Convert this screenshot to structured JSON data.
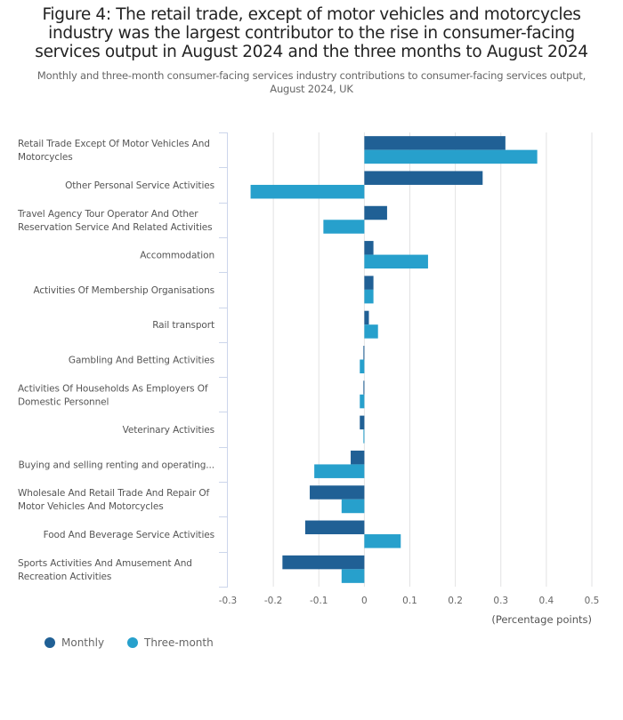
{
  "header": {
    "title": "Figure 4: The retail trade, except of motor vehicles and motorcycles industry was the largest contributor to the rise in consumer-facing services output in August 2024 and the three months to August 2024",
    "subtitle": "Monthly and three-month consumer-facing services industry contributions to consumer-facing services output, August 2024, UK"
  },
  "chart_data": {
    "type": "bar",
    "orientation": "horizontal",
    "title": "Figure 4: The retail trade, except of motor vehicles and motorcycles industry was the largest contributor to the rise in consumer-facing services output in August 2024 and the three months to August 2024",
    "subtitle": "Monthly and three-month consumer-facing services industry contributions to consumer-facing services output, August 2024, UK",
    "xlabel": "(Percentage points)",
    "ylabel": "",
    "xlim": [
      -0.3,
      0.5
    ],
    "xticks": [
      -0.3,
      -0.2,
      -0.1,
      0,
      0.1,
      0.2,
      0.3,
      0.4,
      0.5
    ],
    "xtick_labels": [
      "-0.3",
      "-0.2",
      "-0.1",
      "0",
      "0.1",
      "0.2",
      "0.3",
      "0.4",
      "0.5"
    ],
    "grid": true,
    "legend_position": "bottom-left",
    "categories": [
      "Retail Trade Except Of Motor Vehicles And Motorcycles",
      "Other Personal Service Activities",
      "Travel Agency Tour Operator And Other Reservation Service And Related Activities",
      "Accommodation",
      "Activities Of Membership Organisations",
      "Rail transport",
      "Gambling And Betting Activities",
      "Activities Of Households As Employers Of Domestic Personnel",
      "Veterinary Activities",
      "Buying and selling renting and operating...",
      "Wholesale And Retail Trade And Repair Of Motor Vehicles And Motorcycles",
      "Food And Beverage Service Activities",
      "Sports Activities And Amusement And Recreation Activities"
    ],
    "category_display_lines": [
      [
        "Retail Trade Except Of Motor Vehicles And",
        "Motorcycles"
      ],
      [
        "Other Personal Service Activities"
      ],
      [
        "Travel Agency Tour Operator And Other",
        "Reservation Service And Related Activities"
      ],
      [
        "Accommodation"
      ],
      [
        "Activities Of Membership Organisations"
      ],
      [
        "Rail transport"
      ],
      [
        "Gambling And Betting Activities"
      ],
      [
        "Activities Of Households As Employers Of",
        "Domestic Personnel"
      ],
      [
        "Veterinary Activities"
      ],
      [
        "Buying and selling renting and operating..."
      ],
      [
        "Wholesale And Retail Trade And Repair Of",
        "Motor Vehicles And Motorcycles"
      ],
      [
        "Food And Beverage Service Activities"
      ],
      [
        "Sports Activities And Amusement And",
        "Recreation Activities"
      ]
    ],
    "series": [
      {
        "name": "Monthly",
        "color": "#206095",
        "values": [
          0.31,
          0.26,
          0.05,
          0.02,
          0.02,
          0.01,
          -0.002,
          -0.002,
          -0.01,
          -0.03,
          -0.12,
          -0.13,
          -0.18
        ]
      },
      {
        "name": "Three-month",
        "color": "#27a0cc",
        "values": [
          0.38,
          -0.25,
          -0.09,
          0.14,
          0.02,
          0.03,
          -0.01,
          -0.01,
          -0.002,
          -0.11,
          -0.05,
          0.08,
          -0.05
        ]
      }
    ]
  },
  "legend": {
    "items": [
      {
        "label": "Monthly",
        "color": "#206095"
      },
      {
        "label": "Three-month",
        "color": "#27a0cc"
      }
    ]
  },
  "colors": {
    "grid": "#e2e2e3",
    "axis": "#ccd6eb"
  }
}
